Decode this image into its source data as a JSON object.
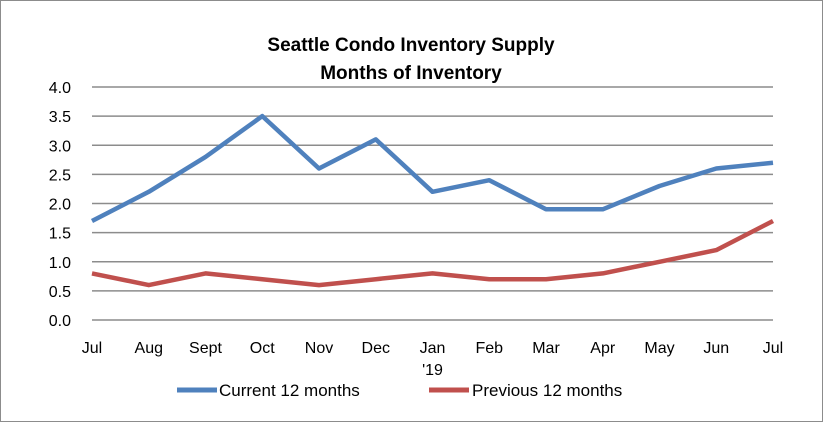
{
  "chart_data": {
    "type": "line",
    "title": "Seattle Condo Inventory Supply",
    "subtitle": "Months of Inventory",
    "xlabel": "",
    "ylabel": "",
    "categories": [
      "Jul",
      "Aug",
      "Sept",
      "Oct",
      "Nov",
      "Dec",
      "Jan",
      "Feb",
      "Mar",
      "Apr",
      "May",
      "Jun",
      "Jul"
    ],
    "category_sublabels": [
      "",
      "",
      "",
      "",
      "",
      "",
      "'19",
      "",
      "",
      "",
      "",
      "",
      ""
    ],
    "ylim": [
      0,
      4
    ],
    "yticks": [
      "0.0",
      "0.5",
      "1.0",
      "1.5",
      "2.0",
      "2.5",
      "3.0",
      "3.5",
      "4.0"
    ],
    "grid": "horizontal",
    "legend_position": "bottom",
    "series": [
      {
        "name": "Current 12 months",
        "color": "#4f81bd",
        "values": [
          1.7,
          2.2,
          2.8,
          3.5,
          2.6,
          3.1,
          2.2,
          2.4,
          1.9,
          1.9,
          2.3,
          2.6,
          2.7
        ]
      },
      {
        "name": "Previous 12 months",
        "color": "#c0504d",
        "values": [
          0.8,
          0.6,
          0.8,
          0.7,
          0.6,
          0.7,
          0.8,
          0.7,
          0.7,
          0.8,
          1.0,
          1.2,
          1.7
        ]
      }
    ]
  }
}
